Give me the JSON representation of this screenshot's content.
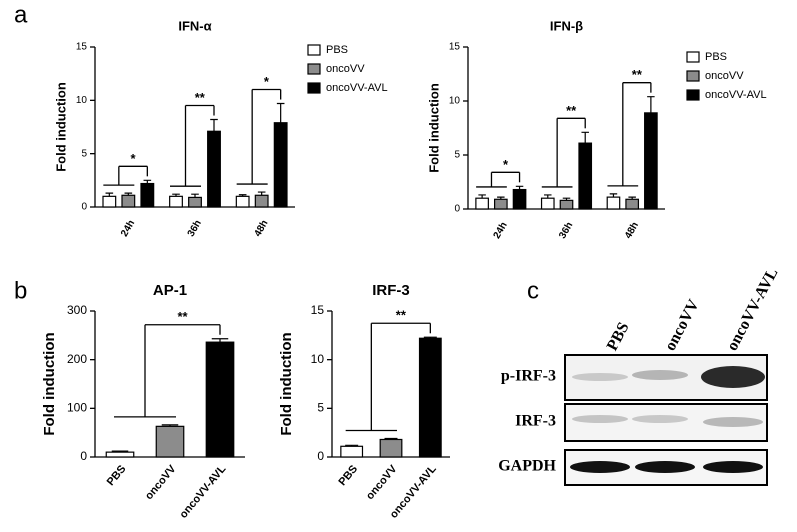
{
  "panel_labels": [
    "a",
    "b",
    "c"
  ],
  "chart_data": [
    {
      "type": "bar",
      "title": "IFN-α",
      "y_label": "Fold induction",
      "categories": [
        "24h",
        "36h",
        "48h"
      ],
      "series": [
        {
          "name": "PBS",
          "color": "#ffffff",
          "values": [
            1,
            1,
            1
          ],
          "errors": [
            0.3,
            0.2,
            0.15
          ]
        },
        {
          "name": "oncoVV",
          "color": "#8c8c8c",
          "values": [
            1.1,
            0.9,
            1.1
          ],
          "errors": [
            0.2,
            0.3,
            0.3
          ]
        },
        {
          "name": "oncoVV-AVL",
          "color": "#000000",
          "values": [
            2.2,
            7.1,
            7.9
          ],
          "errors": [
            0.3,
            1.1,
            1.8
          ]
        }
      ],
      "annotations": [
        "*",
        "**",
        "*"
      ],
      "ylim": [
        0,
        15
      ],
      "yticks": [
        0,
        5,
        10,
        15
      ]
    },
    {
      "type": "bar",
      "title": "IFN-β",
      "y_label": "Fold induction",
      "categories": [
        "24h",
        "36h",
        "48h"
      ],
      "series": [
        {
          "name": "PBS",
          "color": "#ffffff",
          "values": [
            1,
            1,
            1.1
          ],
          "errors": [
            0.3,
            0.3,
            0.3
          ]
        },
        {
          "name": "oncoVV",
          "color": "#8c8c8c",
          "values": [
            0.9,
            0.8,
            0.9
          ],
          "errors": [
            0.2,
            0.2,
            0.2
          ]
        },
        {
          "name": "oncoVV-AVL",
          "color": "#000000",
          "values": [
            1.8,
            6.1,
            8.9
          ],
          "errors": [
            0.3,
            1.0,
            1.5
          ]
        }
      ],
      "annotations": [
        "*",
        "**",
        "**"
      ],
      "ylim": [
        0,
        15
      ],
      "yticks": [
        0,
        5,
        10,
        15
      ]
    },
    {
      "type": "bar",
      "title": "AP-1",
      "y_label": "Fold induction",
      "categories": [
        "PBS",
        "oncoVV",
        "oncoVV-AVL"
      ],
      "values": [
        10,
        63,
        236
      ],
      "errors": [
        2,
        3,
        7
      ],
      "colors": [
        "#ffffff",
        "#8c8c8c",
        "#000000"
      ],
      "annotations": [
        "**"
      ],
      "ylim": [
        0,
        300
      ],
      "yticks": [
        0,
        100,
        200,
        300
      ]
    },
    {
      "type": "bar",
      "title": "IRF-3",
      "y_label": "Fold induction",
      "categories": [
        "PBS",
        "oncoVV",
        "oncoVV-AVL"
      ],
      "values": [
        1.1,
        1.8,
        12.2
      ],
      "errors": [
        0.1,
        0.1,
        0.1
      ],
      "colors": [
        "#ffffff",
        "#8c8c8c",
        "#000000"
      ],
      "annotations": [
        "**"
      ],
      "ylim": [
        0,
        15
      ],
      "yticks": [
        0,
        5,
        10,
        15
      ]
    }
  ],
  "blot": {
    "lanes": [
      "PBS",
      "oncoVV",
      "oncoVV-AVL"
    ],
    "rows": [
      "p-IRF-3",
      "IRF-3",
      "GAPDH"
    ]
  }
}
